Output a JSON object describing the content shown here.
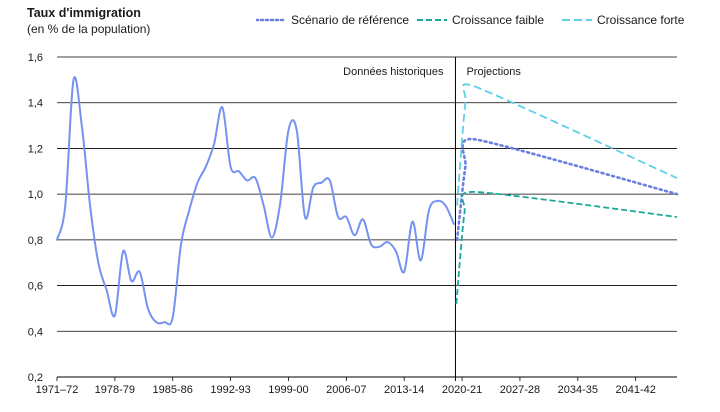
{
  "chart_data": {
    "type": "line",
    "title": "Taux d'immigration",
    "subtitle": "(en % de la population)",
    "ylim": [
      0.2,
      1.6
    ],
    "y_ticks": [
      "0,2",
      "0,4",
      "0,6",
      "0,8",
      "1,0",
      "1,2",
      "1,4",
      "1,6"
    ],
    "y_tick_values": [
      0.2,
      0.4,
      0.6,
      0.8,
      1.0,
      1.2,
      1.4,
      1.6
    ],
    "x_tick_labels": [
      "1971–72",
      "1978-79",
      "1985-86",
      "1992-93",
      "1999-00",
      "2006-07",
      "2013-14",
      "2020-21",
      "2027-28",
      "2034-35",
      "2041-42"
    ],
    "x_tick_start_years": [
      1971,
      1978,
      1985,
      1992,
      1999,
      2006,
      2013,
      2020,
      2027,
      2034,
      2041
    ],
    "xlim_start_years": [
      1971,
      2046
    ],
    "grid": true,
    "annotations": {
      "historical": "Données historiques",
      "projections": "Projections",
      "divider_year": 2019.2
    },
    "legend": {
      "placement": "top-right",
      "reference": "Scénario de référence",
      "low": "Croissance faible",
      "high": "Croissance forte"
    },
    "colors": {
      "historical": "#7592f0",
      "reference": "#6a80e0",
      "low": "#1aa89a",
      "high": "#5fd0e6",
      "grid": "#000000"
    },
    "series": [
      {
        "key": "historical",
        "x": [
          1971,
          1972,
          1973,
          1974,
          1975,
          1976,
          1977,
          1978,
          1979,
          1980,
          1981,
          1982,
          1983,
          1984,
          1985,
          1986,
          1987,
          1988,
          1989,
          1990,
          1991,
          1992,
          1993,
          1994,
          1995,
          1996,
          1997,
          1998,
          1999,
          2000,
          2001,
          2002,
          2003,
          2004,
          2005,
          2006,
          2007,
          2008,
          2009,
          2010,
          2011,
          2012,
          2013,
          2014,
          2015,
          2016,
          2017,
          2018,
          2019
        ],
        "y": [
          0.8,
          0.95,
          1.5,
          1.3,
          0.95,
          0.7,
          0.58,
          0.47,
          0.75,
          0.62,
          0.66,
          0.5,
          0.44,
          0.44,
          0.46,
          0.78,
          0.93,
          1.05,
          1.12,
          1.22,
          1.38,
          1.12,
          1.1,
          1.06,
          1.07,
          0.95,
          0.81,
          0.96,
          1.28,
          1.28,
          0.9,
          1.03,
          1.05,
          1.06,
          0.9,
          0.9,
          0.82,
          0.89,
          0.78,
          0.77,
          0.79,
          0.75,
          0.66,
          0.88,
          0.71,
          0.93,
          0.97,
          0.95,
          0.87
        ]
      },
      {
        "key": "reference",
        "x": [
          2019.4,
          2020.4,
          2021.5,
          2046
        ],
        "y": [
          0.8,
          1.12,
          1.24,
          1.0
        ]
      },
      {
        "key": "low",
        "x": [
          2019.3,
          2020.3,
          2021.5,
          2046
        ],
        "y": [
          0.52,
          0.92,
          1.01,
          0.9
        ]
      },
      {
        "key": "high",
        "x": [
          2019.4,
          2020.4,
          2021.6,
          2046
        ],
        "y": [
          0.95,
          1.4,
          1.47,
          1.07
        ]
      }
    ]
  }
}
